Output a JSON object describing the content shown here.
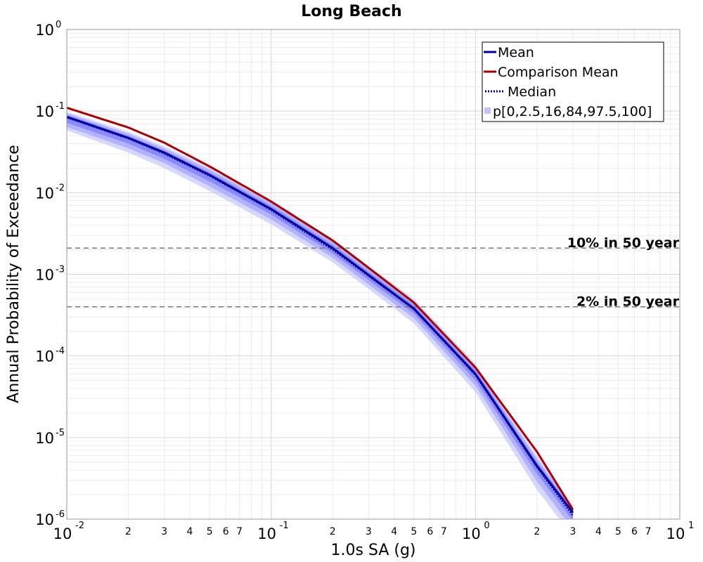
{
  "chart_data": {
    "type": "line",
    "title": "Long Beach",
    "xlabel": "1.0s SA (g)",
    "ylabel": "Annual Probability of Exceedance",
    "xscale": "log",
    "yscale": "log",
    "xlim": [
      0.01,
      10
    ],
    "ylim": [
      1e-06,
      1
    ],
    "grid": true,
    "legend_position": "top-right",
    "x_major_ticks": [
      {
        "base": "10",
        "exp": "-2",
        "value": 0.01
      },
      {
        "base": "10",
        "exp": "-1",
        "value": 0.1
      },
      {
        "base": "10",
        "exp": "0",
        "value": 1
      },
      {
        "base": "10",
        "exp": "1",
        "value": 10
      }
    ],
    "x_minor_labels": [
      "2",
      "3",
      "4",
      "5",
      "6",
      "7"
    ],
    "y_major_ticks": [
      {
        "base": "10",
        "exp": "0",
        "value": 1
      },
      {
        "base": "10",
        "exp": "-1",
        "value": 0.1
      },
      {
        "base": "10",
        "exp": "-2",
        "value": 0.01
      },
      {
        "base": "10",
        "exp": "-3",
        "value": 0.001
      },
      {
        "base": "10",
        "exp": "-4",
        "value": 0.0001
      },
      {
        "base": "10",
        "exp": "-5",
        "value": 1e-05
      },
      {
        "base": "10",
        "exp": "-6",
        "value": 1e-06
      }
    ],
    "x": [
      0.01,
      0.02,
      0.03,
      0.05,
      0.1,
      0.2,
      0.3,
      0.5,
      1.0,
      2.0,
      3.0
    ],
    "series": [
      {
        "name": "Mean",
        "color": "#0000aa",
        "style": "solid",
        "values": [
          0.085,
          0.047,
          0.031,
          0.0165,
          0.0063,
          0.0021,
          0.00098,
          0.00038,
          6e-05,
          4.5e-06,
          1.2e-06
        ]
      },
      {
        "name": "Comparison Mean",
        "color": "#aa0000",
        "style": "solid",
        "values": [
          0.11,
          0.063,
          0.041,
          0.021,
          0.0078,
          0.0026,
          0.0012,
          0.00045,
          7.2e-05,
          6.7e-06,
          1.3e-06
        ]
      },
      {
        "name": "Median",
        "color": "#00008b",
        "style": "dotted",
        "values": [
          0.083,
          0.046,
          0.03,
          0.016,
          0.0061,
          0.002,
          0.00095,
          0.00037,
          5.8e-05,
          4.3e-06,
          1.1e-06
        ]
      }
    ],
    "bands": {
      "name": "p[0,2.5,16,84,97.5,100]",
      "color": "#9999ff",
      "levels": [
        {
          "lower": [
            0.058,
            0.031,
            0.02,
            0.0105,
            0.0041,
            0.0014,
            0.00066,
            0.00025,
            3.6e-05,
            2.3e-06,
            6e-07
          ],
          "upper": [
            0.098,
            0.056,
            0.037,
            0.0205,
            0.008,
            0.0027,
            0.00126,
            0.0005,
            8e-05,
            6e-06,
            1.5e-06
          ]
        },
        {
          "lower": [
            0.064,
            0.035,
            0.023,
            0.012,
            0.0047,
            0.0016,
            0.00075,
            0.00029,
            4.3e-05,
            2.9e-06,
            7.5e-07
          ],
          "upper": [
            0.094,
            0.053,
            0.035,
            0.0192,
            0.0075,
            0.0025,
            0.00118,
            0.00046,
            7.3e-05,
            5.5e-06,
            1.4e-06
          ]
        },
        {
          "lower": [
            0.072,
            0.04,
            0.026,
            0.0138,
            0.0054,
            0.0018,
            0.00085,
            0.00033,
            5e-05,
            3.6e-06,
            9.5e-07
          ],
          "upper": [
            0.09,
            0.05,
            0.033,
            0.0178,
            0.0069,
            0.0023,
            0.00108,
            0.00042,
            6.7e-05,
            5e-06,
            1.3e-06
          ]
        }
      ]
    },
    "reference_lines": [
      {
        "label": "10% in 50 year",
        "y": 0.0021
      },
      {
        "label": "2% in 50 year",
        "y": 0.0004
      }
    ]
  }
}
